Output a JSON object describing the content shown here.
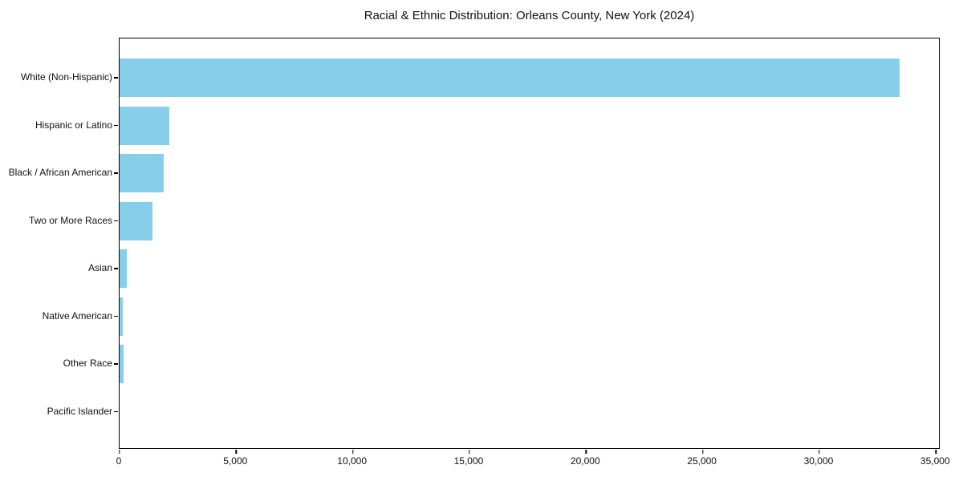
{
  "chart_data": {
    "type": "bar",
    "orientation": "horizontal",
    "title": "Racial & Ethnic Distribution: Orleans County, New York (2024)",
    "categories": [
      "White (Non-Hispanic)",
      "Hispanic or Latino",
      "Black / African American",
      "Two or More Races",
      "Asian",
      "Native American",
      "Other Race",
      "Pacific Islander"
    ],
    "values": [
      33450,
      2140,
      1900,
      1400,
      300,
      150,
      180,
      0
    ],
    "xlabel": "",
    "ylabel": "",
    "xlim": [
      0,
      35100
    ],
    "x_ticks": [
      0,
      5000,
      10000,
      15000,
      20000,
      25000,
      30000,
      35000
    ],
    "x_tick_labels": [
      "0",
      "5,000",
      "10,000",
      "15,000",
      "20,000",
      "25,000",
      "30,000",
      "35,000"
    ],
    "bar_color": "#87CEEB",
    "frame_color": "#000000",
    "background_color": "#ffffff",
    "grid": false,
    "legend": null
  },
  "layout_note": ""
}
